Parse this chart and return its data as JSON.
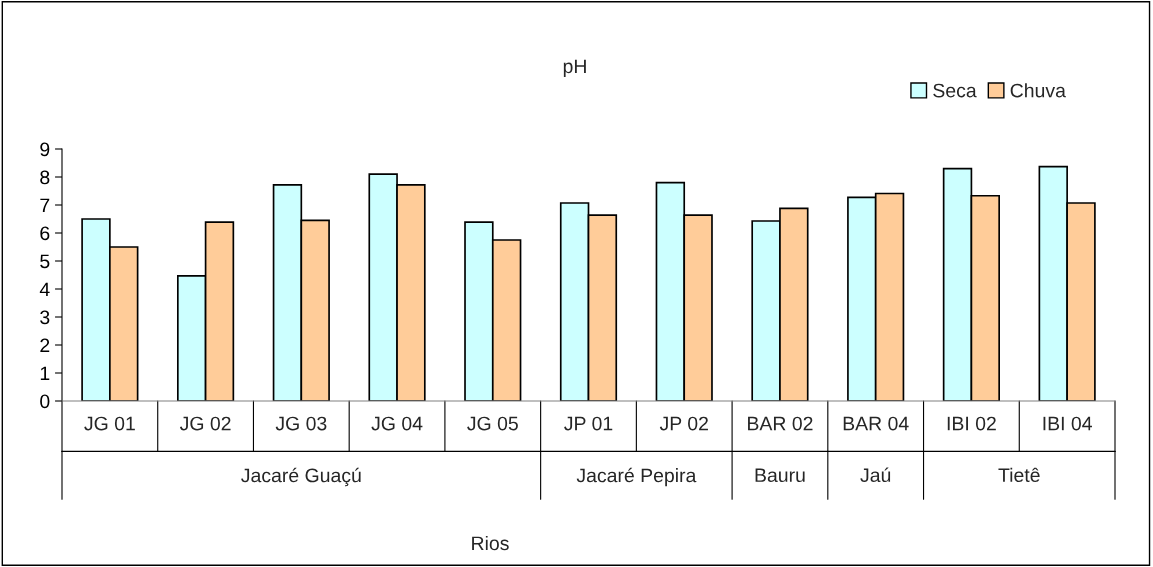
{
  "chart_data": {
    "type": "bar",
    "title": "pH",
    "categories": [
      "JG 01",
      "JG 02",
      "JG 03",
      "JG 04",
      "JG 05",
      "JP 01",
      "JP 02",
      "BAR 02",
      "BAR 04",
      "IBI 02",
      "IBI 04"
    ],
    "series": [
      {
        "name": "Seca",
        "color": "#ccffff",
        "values": [
          6.5,
          4.47,
          7.72,
          8.1,
          6.39,
          7.07,
          7.8,
          6.43,
          7.27,
          8.3,
          8.37
        ]
      },
      {
        "name": "Chuva",
        "color": "#ffcc99",
        "values": [
          5.5,
          6.39,
          6.45,
          7.72,
          5.75,
          6.64,
          6.64,
          6.88,
          7.41,
          7.33,
          7.07
        ]
      }
    ],
    "annotations": [
      "Jacaré Guaçú",
      "Jacaré Pepira",
      "Bauru",
      "Jaú",
      "Tietê",
      "Rios"
    ],
    "ylim": [
      0,
      9
    ],
    "yticks": [
      0,
      1,
      2,
      3,
      4,
      5,
      6,
      7,
      8,
      9
    ],
    "grid": false,
    "legend": "top right"
  }
}
